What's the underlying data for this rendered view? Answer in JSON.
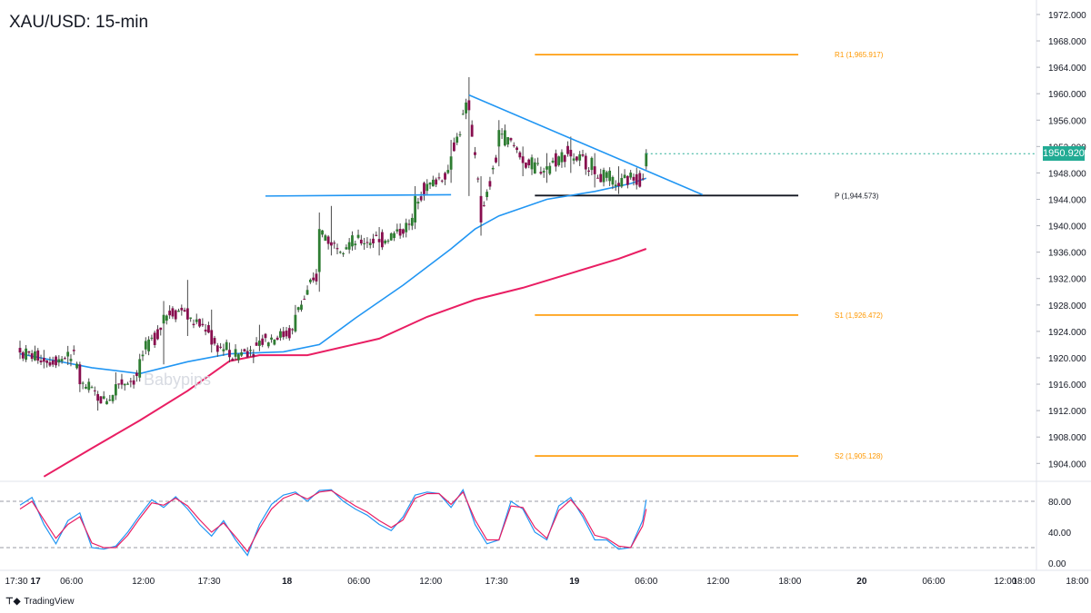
{
  "title": "XAU/USD: 15-min",
  "watermark": "Babypips",
  "brand": {
    "icon": "tradingview-icon",
    "label": "TradingView"
  },
  "current_price": {
    "label": "1950.920",
    "value": 1950.92,
    "color": "#22ab94"
  },
  "chart_data": [
    {
      "type": "candlestick",
      "title": "XAU/USD: 15-min",
      "y_axis": {
        "ticks": [
          1904,
          1908,
          1912,
          1916,
          1920,
          1924,
          1928,
          1932,
          1936,
          1940,
          1944,
          1948,
          1952,
          1956,
          1960,
          1964,
          1968,
          1972
        ],
        "tick_labels": [
          "1904.000",
          "1908.000",
          "1912.000",
          "1916.000",
          "1920.000",
          "1924.000",
          "1928.000",
          "1932.000",
          "1936.000",
          "1940.000",
          "1944.000",
          "1948.000",
          "1952.000",
          "1956.000",
          "1960.000",
          "1964.000",
          "1968.000",
          "1972.000"
        ],
        "ylim": [
          1901.5,
          1973.5
        ]
      },
      "x_axis": {
        "ticks": [
          0,
          3,
          6,
          12,
          17.5,
          24,
          30,
          36,
          41.5,
          48,
          54,
          60,
          66,
          72,
          78,
          84,
          90,
          96
        ],
        "tick_labels": [
          "17:30",
          "17",
          "06:00",
          "12:00",
          "17:30",
          "18",
          "06:00",
          "12:00",
          "17:30",
          "19",
          "06:00",
          "12:00",
          "18:00",
          "20",
          "06:00",
          "12:00",
          "18:00",
          ""
        ],
        "bold_ticks": [
          "17",
          "18",
          "19",
          "20"
        ],
        "note": "x values are hours after 16th 17:30; time labels as printed"
      },
      "candles_ohlc_keypoints": [
        {
          "t": 0,
          "o": 1921.5,
          "h": 1922.6,
          "c": 1920.8,
          "l": 1919.8
        },
        {
          "t": 2,
          "o": 1920.0,
          "h": 1921.2,
          "c": 1919.4,
          "l": 1918.4
        },
        {
          "t": 4,
          "o": 1920.2,
          "h": 1921.8,
          "c": 1920.9,
          "l": 1918.9
        },
        {
          "t": 5,
          "o": 1919.0,
          "h": 1919.4,
          "c": 1916.0,
          "l": 1914.8
        },
        {
          "t": 6.5,
          "o": 1914.5,
          "h": 1915.0,
          "c": 1913.5,
          "l": 1912.0
        },
        {
          "t": 8,
          "o": 1914.3,
          "h": 1917.8,
          "c": 1916.0,
          "l": 1913.6
        },
        {
          "t": 10,
          "o": 1917.0,
          "h": 1920.6,
          "c": 1919.8,
          "l": 1916.4
        },
        {
          "t": 12,
          "o": 1925.2,
          "h": 1928.6,
          "c": 1926.5,
          "l": 1919.0
        },
        {
          "t": 14,
          "o": 1927.5,
          "h": 1931.8,
          "c": 1925.8,
          "l": 1923.3
        },
        {
          "t": 16,
          "o": 1924.2,
          "h": 1927.3,
          "c": 1922.0,
          "l": 1920.8
        },
        {
          "t": 17.5,
          "o": 1921.2,
          "h": 1922.3,
          "c": 1920.1,
          "l": 1919.3
        },
        {
          "t": 20,
          "o": 1921.8,
          "h": 1925.0,
          "c": 1922.6,
          "l": 1921.0
        },
        {
          "t": 23,
          "o": 1924.0,
          "h": 1928.0,
          "c": 1926.5,
          "l": 1923.8
        },
        {
          "t": 25,
          "o": 1933.0,
          "h": 1942.0,
          "c": 1939.5,
          "l": 1930.0
        },
        {
          "t": 26,
          "o": 1937.5,
          "h": 1943.0,
          "c": 1937.0,
          "l": 1935.5
        },
        {
          "t": 30,
          "o": 1938.0,
          "h": 1939.8,
          "c": 1937.5,
          "l": 1935.5
        },
        {
          "t": 33,
          "o": 1940.5,
          "h": 1946.0,
          "c": 1944.5,
          "l": 1939.5
        },
        {
          "t": 36,
          "o": 1948.5,
          "h": 1953.0,
          "c": 1950.5,
          "l": 1946.5
        },
        {
          "t": 37.5,
          "o": 1959.0,
          "h": 1962.5,
          "c": 1957.5,
          "l": 1944.5
        },
        {
          "t": 38.5,
          "o": 1944.5,
          "h": 1947.5,
          "c": 1940.5,
          "l": 1938.5
        },
        {
          "t": 40,
          "o": 1952.0,
          "h": 1956.0,
          "c": 1954.5,
          "l": 1949.0
        },
        {
          "t": 42,
          "o": 1950.5,
          "h": 1952.0,
          "c": 1949.5,
          "l": 1947.5
        },
        {
          "t": 44,
          "o": 1948.5,
          "h": 1951.0,
          "c": 1949.0,
          "l": 1946.5
        },
        {
          "t": 46,
          "o": 1951.5,
          "h": 1953.5,
          "c": 1950.5,
          "l": 1948.0
        },
        {
          "t": 48,
          "o": 1949.0,
          "h": 1951.0,
          "c": 1947.8,
          "l": 1945.8
        },
        {
          "t": 50,
          "o": 1946.5,
          "h": 1949.0,
          "c": 1946.0,
          "l": 1944.8
        },
        {
          "t": 51.5,
          "o": 1947.8,
          "h": 1948.8,
          "c": 1946.2,
          "l": 1945.5
        },
        {
          "t": 52.3,
          "o": 1949.0,
          "h": 1951.6,
          "c": 1951.0,
          "l": 1948.5
        }
      ],
      "moving_averages": [
        {
          "color": "#2196f3",
          "points": [
            [
              0,
              1920.6
            ],
            [
              6,
              1918.5
            ],
            [
              10,
              1917.6
            ],
            [
              14,
              1919.4
            ],
            [
              17.5,
              1920.6
            ],
            [
              22,
              1920.9
            ],
            [
              25,
              1922.0
            ],
            [
              28,
              1926.0
            ],
            [
              32,
              1931.0
            ],
            [
              36,
              1936.5
            ],
            [
              38,
              1939.5
            ],
            [
              40,
              1941.5
            ],
            [
              44,
              1944.0
            ],
            [
              48,
              1945.2
            ],
            [
              51,
              1946.4
            ],
            [
              52.3,
              1947.2
            ]
          ]
        },
        {
          "color": "#e91e63",
          "points": [
            [
              2,
              1902.0
            ],
            [
              6,
              1906.3
            ],
            [
              10,
              1910.5
            ],
            [
              14,
              1915.0
            ],
            [
              17.5,
              1919.5
            ],
            [
              20,
              1920.4
            ],
            [
              24,
              1920.4
            ],
            [
              30,
              1922.9
            ],
            [
              34,
              1926.2
            ],
            [
              38,
              1928.8
            ],
            [
              42,
              1930.6
            ],
            [
              46,
              1932.8
            ],
            [
              50,
              1935.0
            ],
            [
              52.3,
              1936.5
            ]
          ]
        }
      ],
      "trendlines": [
        {
          "color": "#2196f3",
          "from": [
            20.5,
            1944.5
          ],
          "to": [
            36,
            1944.7
          ]
        },
        {
          "color": "#2196f3",
          "from": [
            37.5,
            1959.8
          ],
          "to": [
            57,
            1944.7
          ]
        }
      ],
      "pivot_levels": [
        {
          "label": "R1 (1,965.917)",
          "value": 1965.917,
          "color": "#ff9800",
          "from": 43,
          "to": 65
        },
        {
          "label": "P (1,944.573)",
          "value": 1944.573,
          "color": "#131722",
          "from": 43,
          "to": 65
        },
        {
          "label": "S1 (1,926.472)",
          "value": 1926.472,
          "color": "#ff9800",
          "from": 43,
          "to": 65
        },
        {
          "label": "S2 (1,905.128)",
          "value": 1905.128,
          "color": "#ff9800",
          "from": 43,
          "to": 65
        }
      ]
    },
    {
      "type": "line",
      "title": "",
      "y_axis": {
        "ticks": [
          0,
          40,
          80
        ],
        "tick_labels": [
          "0.00",
          "40.00",
          "80.00"
        ],
        "ylim": [
          -4,
          102
        ]
      },
      "reference_lines": [
        80,
        20
      ],
      "series": [
        {
          "color": "#2196f3",
          "points": [
            [
              0,
              75
            ],
            [
              1,
              85
            ],
            [
              2,
              50
            ],
            [
              3,
              25
            ],
            [
              4,
              55
            ],
            [
              5,
              65
            ],
            [
              6,
              20
            ],
            [
              7,
              18
            ],
            [
              8,
              22
            ],
            [
              9,
              40
            ],
            [
              10,
              62
            ],
            [
              11,
              82
            ],
            [
              12,
              72
            ],
            [
              13,
              86
            ],
            [
              14,
              70
            ],
            [
              15,
              50
            ],
            [
              16,
              35
            ],
            [
              17,
              55
            ],
            [
              18,
              30
            ],
            [
              19,
              10
            ],
            [
              20,
              50
            ],
            [
              21,
              76
            ],
            [
              22,
              88
            ],
            [
              23,
              92
            ],
            [
              24,
              80
            ],
            [
              25,
              94
            ],
            [
              26,
              95
            ],
            [
              27,
              80
            ],
            [
              28,
              70
            ],
            [
              29,
              62
            ],
            [
              30,
              50
            ],
            [
              31,
              42
            ],
            [
              32,
              60
            ],
            [
              33,
              88
            ],
            [
              34,
              92
            ],
            [
              35,
              90
            ],
            [
              36,
              72
            ],
            [
              37,
              95
            ],
            [
              38,
              50
            ],
            [
              39,
              25
            ],
            [
              40,
              30
            ],
            [
              41,
              80
            ],
            [
              42,
              70
            ],
            [
              43,
              40
            ],
            [
              44,
              30
            ],
            [
              45,
              74
            ],
            [
              46,
              85
            ],
            [
              47,
              60
            ],
            [
              48,
              30
            ],
            [
              49,
              30
            ],
            [
              50,
              18
            ],
            [
              51,
              20
            ],
            [
              52,
              55
            ],
            [
              52.3,
              82
            ]
          ]
        },
        {
          "color": "#e91e63",
          "points": [
            [
              0,
              70
            ],
            [
              1,
              80
            ],
            [
              2,
              56
            ],
            [
              3,
              32
            ],
            [
              4,
              50
            ],
            [
              5,
              60
            ],
            [
              6,
              26
            ],
            [
              7,
              20
            ],
            [
              8,
              20
            ],
            [
              9,
              36
            ],
            [
              10,
              58
            ],
            [
              11,
              78
            ],
            [
              12,
              75
            ],
            [
              13,
              84
            ],
            [
              14,
              74
            ],
            [
              15,
              56
            ],
            [
              16,
              40
            ],
            [
              17,
              52
            ],
            [
              18,
              34
            ],
            [
              19,
              15
            ],
            [
              20,
              45
            ],
            [
              21,
              70
            ],
            [
              22,
              84
            ],
            [
              23,
              90
            ],
            [
              24,
              83
            ],
            [
              25,
              92
            ],
            [
              26,
              94
            ],
            [
              27,
              84
            ],
            [
              28,
              74
            ],
            [
              29,
              66
            ],
            [
              30,
              55
            ],
            [
              31,
              46
            ],
            [
              32,
              56
            ],
            [
              33,
              84
            ],
            [
              34,
              90
            ],
            [
              35,
              90
            ],
            [
              36,
              76
            ],
            [
              37,
              92
            ],
            [
              38,
              56
            ],
            [
              39,
              30
            ],
            [
              40,
              30
            ],
            [
              41,
              74
            ],
            [
              42,
              72
            ],
            [
              43,
              46
            ],
            [
              44,
              32
            ],
            [
              45,
              68
            ],
            [
              46,
              82
            ],
            [
              47,
              64
            ],
            [
              48,
              36
            ],
            [
              49,
              32
            ],
            [
              50,
              22
            ],
            [
              51,
              20
            ],
            [
              52,
              48
            ],
            [
              52.3,
              70
            ]
          ]
        }
      ]
    }
  ]
}
